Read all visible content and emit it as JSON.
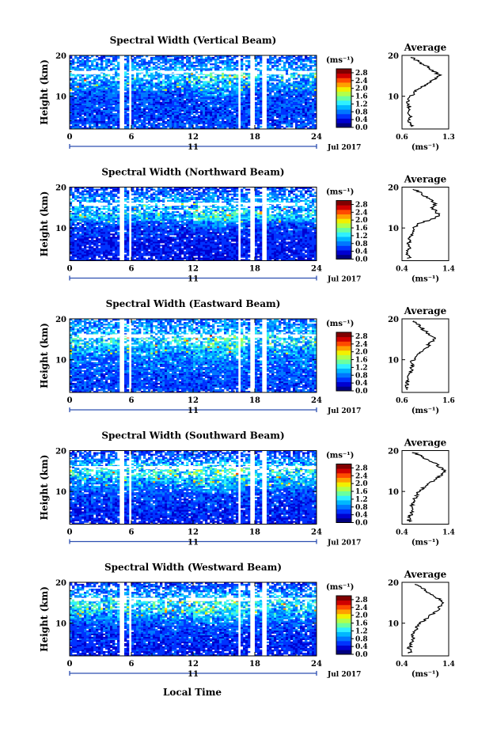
{
  "figure": {
    "xlabel": "Local Time",
    "date_label": "Jul 2017",
    "day_label": "11",
    "ylabel": "Height (km)",
    "unit_label": "(ms⁻¹)",
    "avg_title": "Average",
    "avg_xlabel": "(ms⁻¹)"
  },
  "colors": {
    "colormap": [
      "#000080",
      "#0000d0",
      "#0033ff",
      "#0077ff",
      "#00b7ff",
      "#2ff0ff",
      "#6affa0",
      "#b2ff4a",
      "#f2f000",
      "#ffa000",
      "#ff4a00",
      "#d00000",
      "#800000"
    ],
    "band": "#2d4fb0",
    "line": "#000000"
  },
  "chart_data": [
    {
      "type": "heatmap",
      "title": "Spectral Width (Vertical Beam)",
      "xlabel": "Local Time",
      "ylabel": "Height (km)",
      "xlim": [
        0,
        24
      ],
      "ylim": [
        2,
        20
      ],
      "xticks": [
        "0",
        "6",
        "12",
        "18",
        "24"
      ],
      "yticks": [
        "10",
        "20"
      ],
      "colorbar": {
        "unit": "(ms⁻¹)",
        "range": [
          0,
          3
        ],
        "ticks": [
          "0.0",
          "0.4",
          "0.8",
          "1.2",
          "1.6",
          "2.0",
          "2.4",
          "2.8"
        ]
      },
      "data_gaps_hours": [
        [
          4.9,
          5.3
        ],
        [
          5.7,
          6.1
        ],
        [
          16.3,
          16.7
        ],
        [
          17.6,
          18.0
        ],
        [
          18.8,
          19.2
        ]
      ],
      "average": {
        "title": "Average",
        "xlabel": "(ms⁻¹)",
        "xlim": [
          0.6,
          1.3
        ],
        "xticks": [
          "0.6",
          "1.3"
        ],
        "yticks": [
          "10",
          "20"
        ],
        "height_km": [
          3,
          4,
          5,
          6,
          7,
          8,
          9,
          10,
          11,
          12,
          13,
          14,
          15,
          16,
          17,
          18,
          19,
          20
        ],
        "values": [
          0.75,
          0.68,
          0.73,
          0.67,
          0.71,
          0.7,
          0.69,
          0.74,
          0.78,
          0.86,
          0.97,
          1.05,
          1.18,
          1.08,
          1.0,
          0.9,
          0.8,
          0.72
        ]
      }
    },
    {
      "type": "heatmap",
      "title": "Spectral Width (Northward Beam)",
      "xlabel": "Local Time",
      "ylabel": "Height (km)",
      "xlim": [
        0,
        24
      ],
      "ylim": [
        2,
        20
      ],
      "xticks": [
        "0",
        "6",
        "12",
        "18",
        "24"
      ],
      "yticks": [
        "10",
        "20"
      ],
      "colorbar": {
        "unit": "(ms⁻¹)",
        "range": [
          0,
          3
        ],
        "ticks": [
          "0.0",
          "0.4",
          "0.8",
          "1.2",
          "1.6",
          "2.0",
          "2.4",
          "2.8"
        ]
      },
      "data_gaps_hours": [
        [
          4.9,
          5.3
        ],
        [
          5.7,
          6.1
        ],
        [
          16.3,
          16.7
        ],
        [
          17.6,
          18.0
        ],
        [
          18.8,
          19.2
        ]
      ],
      "average": {
        "title": "Average",
        "xlabel": "(ms⁻¹)",
        "xlim": [
          0.4,
          1.4
        ],
        "xticks": [
          "0.4",
          "1.4"
        ],
        "yticks": [
          "10",
          "20"
        ],
        "height_km": [
          3,
          4,
          5,
          6,
          7,
          8,
          9,
          10,
          11,
          12,
          13,
          14,
          15,
          16,
          17,
          18,
          19,
          20
        ],
        "values": [
          0.55,
          0.52,
          0.56,
          0.54,
          0.55,
          0.58,
          0.62,
          0.66,
          0.72,
          1.02,
          1.2,
          1.14,
          1.05,
          1.1,
          1.0,
          0.86,
          0.74,
          0.6
        ]
      }
    },
    {
      "type": "heatmap",
      "title": "Spectral Width (Eastward Beam)",
      "xlabel": "Local Time",
      "ylabel": "Height (km)",
      "xlim": [
        0,
        24
      ],
      "ylim": [
        2,
        20
      ],
      "xticks": [
        "0",
        "6",
        "12",
        "18",
        "24"
      ],
      "yticks": [
        "10",
        "20"
      ],
      "colorbar": {
        "unit": "(ms⁻¹)",
        "range": [
          0,
          3
        ],
        "ticks": [
          "0.0",
          "0.4",
          "0.8",
          "1.2",
          "1.6",
          "2.0",
          "2.4",
          "2.8"
        ]
      },
      "data_gaps_hours": [
        [
          4.9,
          5.3
        ],
        [
          5.7,
          6.1
        ],
        [
          16.3,
          16.7
        ],
        [
          17.6,
          18.0
        ],
        [
          18.8,
          19.2
        ]
      ],
      "average": {
        "title": "Average",
        "xlabel": "(ms⁻¹)",
        "xlim": [
          0.6,
          1.6
        ],
        "xticks": [
          "0.6",
          "1.6"
        ],
        "yticks": [
          "10",
          "20"
        ],
        "height_km": [
          3,
          4,
          5,
          6,
          7,
          8,
          9,
          10,
          11,
          12,
          13,
          14,
          15,
          16,
          17,
          18,
          19,
          20
        ],
        "values": [
          0.72,
          0.7,
          0.74,
          0.73,
          0.78,
          0.82,
          0.8,
          0.84,
          0.92,
          1.0,
          1.12,
          1.2,
          1.3,
          1.22,
          1.1,
          1.0,
          0.9,
          0.8
        ]
      }
    },
    {
      "type": "heatmap",
      "title": "Spectral Width (Southward Beam)",
      "xlabel": "Local Time",
      "ylabel": "Height (km)",
      "xlim": [
        0,
        24
      ],
      "ylim": [
        2,
        20
      ],
      "xticks": [
        "0",
        "6",
        "12",
        "18",
        "24"
      ],
      "yticks": [
        "10",
        "20"
      ],
      "colorbar": {
        "unit": "(ms⁻¹)",
        "range": [
          0,
          3
        ],
        "ticks": [
          "0.0",
          "0.4",
          "0.8",
          "1.2",
          "1.6",
          "2.0",
          "2.4",
          "2.8"
        ]
      },
      "data_gaps_hours": [
        [
          4.9,
          5.3
        ],
        [
          5.7,
          6.1
        ],
        [
          16.3,
          16.7
        ],
        [
          17.6,
          18.0
        ],
        [
          18.8,
          19.2
        ]
      ],
      "average": {
        "title": "Average",
        "xlabel": "(ms⁻¹)",
        "xlim": [
          0.4,
          1.4
        ],
        "xticks": [
          "0.4",
          "1.4"
        ],
        "yticks": [
          "10",
          "20"
        ],
        "height_km": [
          3,
          4,
          5,
          6,
          7,
          8,
          9,
          10,
          11,
          12,
          13,
          14,
          15,
          16,
          17,
          18,
          19,
          20
        ],
        "values": [
          0.55,
          0.58,
          0.62,
          0.6,
          0.64,
          0.66,
          0.7,
          0.76,
          0.86,
          0.98,
          1.12,
          1.24,
          1.32,
          1.2,
          1.1,
          0.92,
          0.74,
          0.58
        ]
      }
    },
    {
      "type": "heatmap",
      "title": "Spectral Width (Westward Beam)",
      "xlabel": "Local Time",
      "ylabel": "Height (km)",
      "xlim": [
        0,
        24
      ],
      "ylim": [
        2,
        20
      ],
      "xticks": [
        "0",
        "6",
        "12",
        "18",
        "24"
      ],
      "yticks": [
        "10",
        "20"
      ],
      "colorbar": {
        "unit": "(ms⁻¹)",
        "range": [
          0,
          3
        ],
        "ticks": [
          "0.0",
          "0.4",
          "0.8",
          "1.2",
          "1.6",
          "2.0",
          "2.4",
          "2.8"
        ]
      },
      "data_gaps_hours": [
        [
          4.9,
          5.3
        ],
        [
          5.7,
          6.1
        ],
        [
          16.3,
          16.7
        ],
        [
          17.6,
          18.0
        ],
        [
          18.8,
          19.2
        ]
      ],
      "average": {
        "title": "Average",
        "xlabel": "(ms⁻¹)",
        "xlim": [
          0.4,
          1.4
        ],
        "xticks": [
          "0.4",
          "1.4"
        ],
        "yticks": [
          "10",
          "20"
        ],
        "height_km": [
          3,
          4,
          5,
          6,
          7,
          8,
          9,
          10,
          11,
          12,
          13,
          14,
          15,
          16,
          17,
          18,
          19,
          20
        ],
        "values": [
          0.58,
          0.55,
          0.6,
          0.62,
          0.64,
          0.68,
          0.72,
          0.78,
          0.92,
          1.02,
          1.15,
          1.22,
          1.3,
          1.18,
          1.04,
          0.9,
          0.76,
          0.62
        ]
      }
    }
  ]
}
